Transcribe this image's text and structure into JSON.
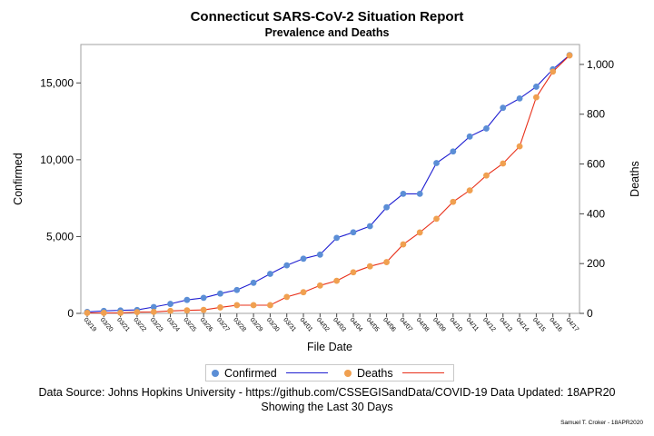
{
  "chart_data": {
    "type": "line",
    "title": "Connecticut SARS-CoV-2 Situation Report",
    "subtitle": "Prevalence and Deaths",
    "xlabel": "File Date",
    "ylabel_left": "Confirmed",
    "ylabel_right": "Deaths",
    "x": [
      "03/19",
      "03/20",
      "03/21",
      "03/22",
      "03/23",
      "03/24",
      "03/25",
      "03/26",
      "03/27",
      "03/28",
      "03/29",
      "03/30",
      "03/31",
      "04/01",
      "04/02",
      "04/03",
      "04/04",
      "04/05",
      "04/06",
      "04/07",
      "04/08",
      "04/09",
      "04/10",
      "04/11",
      "04/12",
      "04/13",
      "04/14",
      "04/15",
      "04/16",
      "04/17"
    ],
    "ylim_left": [
      0,
      17500
    ],
    "ylim_right": [
      0,
      1080
    ],
    "yticks_left": [
      0,
      5000,
      10000,
      15000
    ],
    "yticks_left_labels": [
      "0",
      "5,000",
      "10,000",
      "15,000"
    ],
    "yticks_right": [
      0,
      200,
      400,
      600,
      800,
      1000
    ],
    "yticks_right_labels": [
      "0",
      "200",
      "400",
      "600",
      "800",
      "1,000"
    ],
    "series": [
      {
        "name": "Confirmed",
        "axis": "left",
        "marker_color": "#5b8ed6",
        "line_color": "#1f1fd1",
        "values": [
          96,
          159,
          194,
          223,
          415,
          618,
          875,
          1012,
          1291,
          1524,
          1993,
          2571,
          3128,
          3557,
          3824,
          4914,
          5276,
          5675,
          6906,
          7781,
          7781,
          9784,
          10538,
          11510,
          12035,
          13381,
          13989,
          14755,
          15884,
          16809
        ]
      },
      {
        "name": "Deaths",
        "axis": "right",
        "marker_color": "#f0a050",
        "line_color": "#e8301a",
        "values": [
          2,
          2,
          2,
          5,
          6,
          10,
          12,
          14,
          24,
          33,
          33,
          33,
          66,
          85,
          112,
          131,
          165,
          189,
          206,
          277,
          325,
          380,
          448,
          494,
          554,
          602,
          671,
          868,
          971,
          1036
        ]
      }
    ],
    "legend": {
      "position": "bottom"
    }
  },
  "footnote": {
    "line1": "Data Source: Johns Hopkins University - https://github.com/CSSEGISandData/COVID-19 Data Updated: 18APR20",
    "line2": "Showing the Last 30 Days"
  },
  "credit": "Samuel T. Croker - 18APR2020"
}
